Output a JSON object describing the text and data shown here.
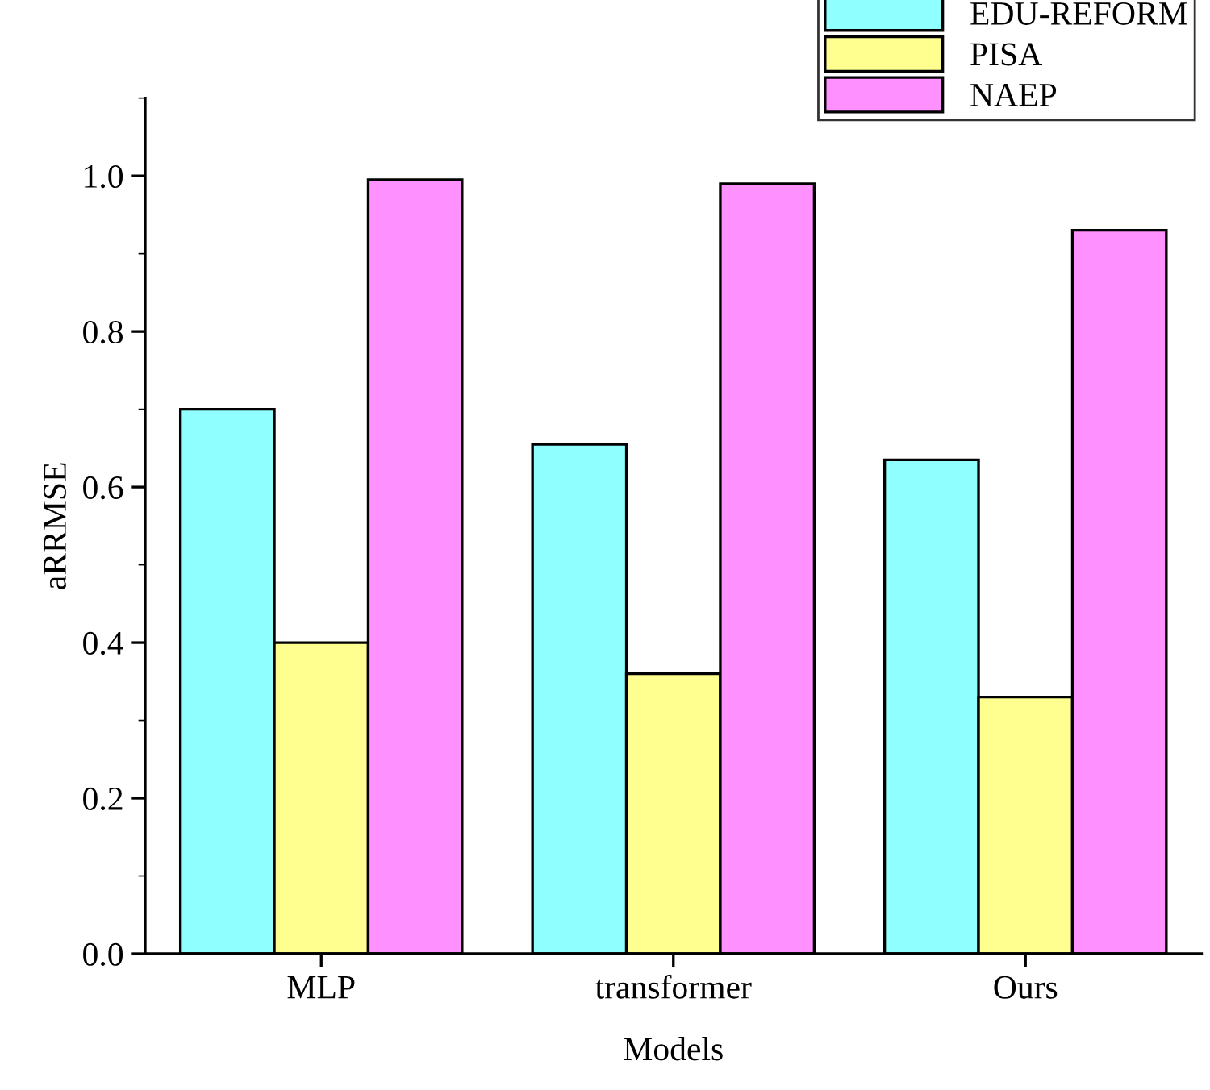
{
  "chart_data": {
    "type": "bar",
    "xlabel": "Models",
    "ylabel": "aRRMSE",
    "categories": [
      "MLP",
      "transformer",
      "Ours"
    ],
    "series": [
      {
        "name": "EDU-REFORM",
        "color": "#90ffff",
        "values": [
          0.7,
          0.655,
          0.635
        ]
      },
      {
        "name": "PISA",
        "color": "#ffff90",
        "values": [
          0.4,
          0.36,
          0.33
        ]
      },
      {
        "name": "NAEP",
        "color": "#ff90ff",
        "values": [
          0.995,
          0.99,
          0.93
        ]
      }
    ],
    "ylim": [
      0,
      1.1
    ],
    "yticks": [
      {
        "value": 0,
        "label": "0.0"
      },
      {
        "value": 0.2,
        "label": "0.2"
      },
      {
        "value": 0.4,
        "label": "0.4"
      },
      {
        "value": 0.6,
        "label": "0.6"
      },
      {
        "value": 0.8,
        "label": "0.8"
      },
      {
        "value": 1.0,
        "label": "1.0"
      }
    ],
    "grid": false,
    "legend": "top right"
  }
}
